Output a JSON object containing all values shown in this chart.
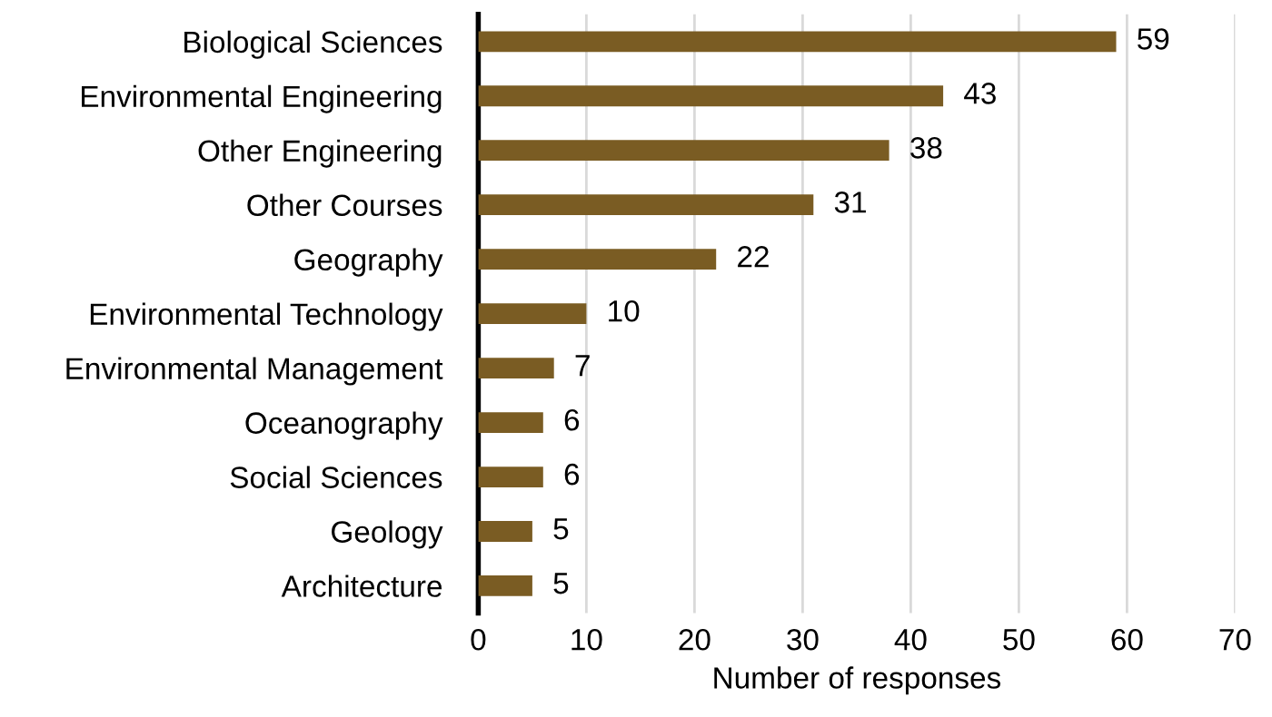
{
  "chart_data": {
    "type": "bar",
    "orientation": "horizontal",
    "xlabel": "Number of responses",
    "categories": [
      "Biological Sciences",
      "Environmental Engineering",
      "Other Engineering",
      "Other Courses",
      "Geography",
      "Environmental Technology",
      "Environmental Management",
      "Oceanography",
      "Social Sciences",
      "Geology",
      "Architecture"
    ],
    "values": [
      59,
      43,
      38,
      31,
      22,
      10,
      7,
      6,
      6,
      5,
      5
    ],
    "color": "#7a5c23",
    "xlim": [
      0,
      70
    ],
    "xticks": [
      0,
      10,
      20,
      30,
      40,
      50,
      60,
      70
    ],
    "grid": "x",
    "data_labels": true
  }
}
